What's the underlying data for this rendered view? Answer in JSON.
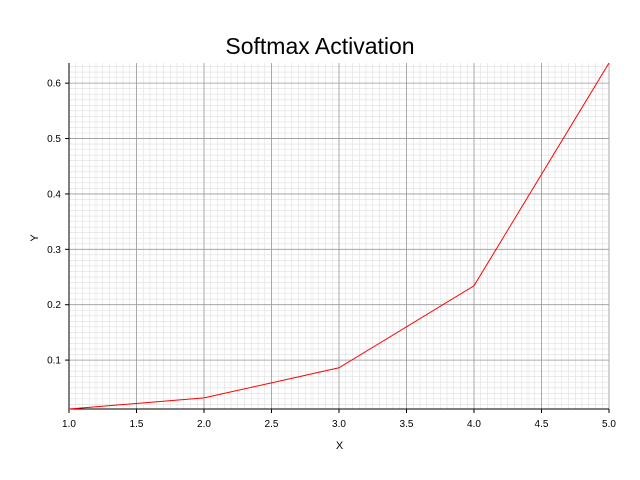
{
  "chart_data": {
    "type": "line",
    "title": "Softmax Activation",
    "xlabel": "X",
    "ylabel": "Y",
    "xlim": [
      1.0,
      5.0
    ],
    "ylim": [
      0.0117,
      0.6364
    ],
    "x_ticks": [
      1.0,
      1.5,
      2.0,
      2.5,
      3.0,
      3.5,
      4.0,
      4.5,
      5.0
    ],
    "x_tick_labels": [
      "1.0",
      "1.5",
      "2.0",
      "2.5",
      "3.0",
      "3.5",
      "4.0",
      "4.5",
      "5.0"
    ],
    "y_ticks": [
      0.1,
      0.2,
      0.3,
      0.4,
      0.5,
      0.6
    ],
    "y_tick_labels": [
      "0.1",
      "0.2",
      "0.3",
      "0.4",
      "0.5",
      "0.6"
    ],
    "grid": true,
    "minor_grid": true,
    "series": [
      {
        "color": "#ff0000",
        "x": [
          1.0,
          2.0,
          3.0,
          4.0,
          5.0
        ],
        "y": [
          0.0117,
          0.0317,
          0.0861,
          0.2341,
          0.6364
        ]
      }
    ]
  }
}
